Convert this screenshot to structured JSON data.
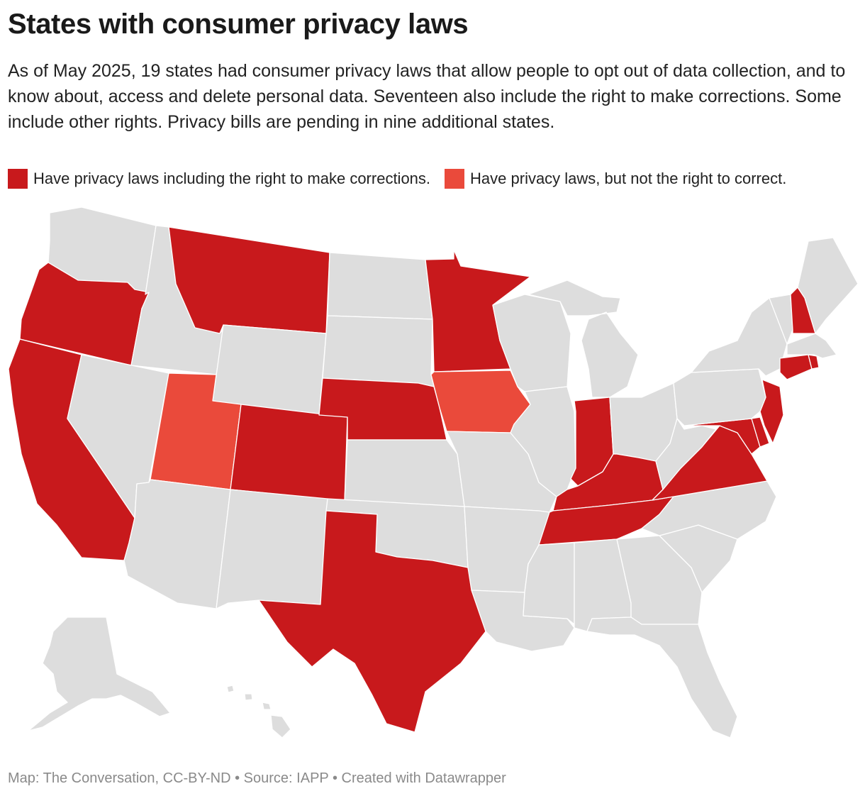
{
  "title": "States with consumer privacy laws",
  "description": "As of May 2025, 19 states had consumer privacy laws that allow people to opt out of data collection, and to know about, access and delete personal data. Seventeen also include the right to make corrections. Some include other rights. Privacy bills are pending in nine additional states.",
  "legend": [
    {
      "label": "Have privacy laws including the right to make corrections.",
      "color": "#c8191c"
    },
    {
      "label": "Have privacy laws, but not the right to correct.",
      "color": "#ea4a3b"
    }
  ],
  "colors": {
    "correct": "#c8191c",
    "no_correct": "#ea4a3b",
    "none": "#dddddd"
  },
  "states": [
    {
      "id": "WA",
      "status": "none"
    },
    {
      "id": "OR",
      "status": "correct"
    },
    {
      "id": "CA",
      "status": "correct"
    },
    {
      "id": "ID",
      "status": "none"
    },
    {
      "id": "NV",
      "status": "none"
    },
    {
      "id": "MT",
      "status": "correct"
    },
    {
      "id": "WY",
      "status": "none"
    },
    {
      "id": "UT",
      "status": "no_correct"
    },
    {
      "id": "CO",
      "status": "correct"
    },
    {
      "id": "AZ",
      "status": "none"
    },
    {
      "id": "NM",
      "status": "none"
    },
    {
      "id": "ND",
      "status": "none"
    },
    {
      "id": "SD",
      "status": "none"
    },
    {
      "id": "NE",
      "status": "correct"
    },
    {
      "id": "KS",
      "status": "none"
    },
    {
      "id": "OK",
      "status": "none"
    },
    {
      "id": "TX",
      "status": "correct"
    },
    {
      "id": "MN",
      "status": "correct"
    },
    {
      "id": "IA",
      "status": "no_correct"
    },
    {
      "id": "MO",
      "status": "none"
    },
    {
      "id": "AR",
      "status": "none"
    },
    {
      "id": "LA",
      "status": "none"
    },
    {
      "id": "WI",
      "status": "none"
    },
    {
      "id": "IL",
      "status": "none"
    },
    {
      "id": "MI",
      "status": "none"
    },
    {
      "id": "IN",
      "status": "correct"
    },
    {
      "id": "OH",
      "status": "none"
    },
    {
      "id": "KY",
      "status": "correct"
    },
    {
      "id": "TN",
      "status": "correct"
    },
    {
      "id": "MS",
      "status": "none"
    },
    {
      "id": "AL",
      "status": "none"
    },
    {
      "id": "GA",
      "status": "none"
    },
    {
      "id": "FL",
      "status": "none"
    },
    {
      "id": "SC",
      "status": "none"
    },
    {
      "id": "NC",
      "status": "none"
    },
    {
      "id": "VA",
      "status": "correct"
    },
    {
      "id": "WV",
      "status": "none"
    },
    {
      "id": "MD",
      "status": "correct"
    },
    {
      "id": "DE",
      "status": "correct"
    },
    {
      "id": "NJ",
      "status": "correct"
    },
    {
      "id": "PA",
      "status": "none"
    },
    {
      "id": "NY",
      "status": "none"
    },
    {
      "id": "CT",
      "status": "correct"
    },
    {
      "id": "RI",
      "status": "correct"
    },
    {
      "id": "MA",
      "status": "none"
    },
    {
      "id": "VT",
      "status": "none"
    },
    {
      "id": "NH",
      "status": "correct"
    },
    {
      "id": "ME",
      "status": "none"
    },
    {
      "id": "AK",
      "status": "none"
    },
    {
      "id": "HI",
      "status": "none"
    }
  ],
  "footer": "Map: The Conversation, CC-BY-ND • Source: IAPP • Created with Datawrapper"
}
